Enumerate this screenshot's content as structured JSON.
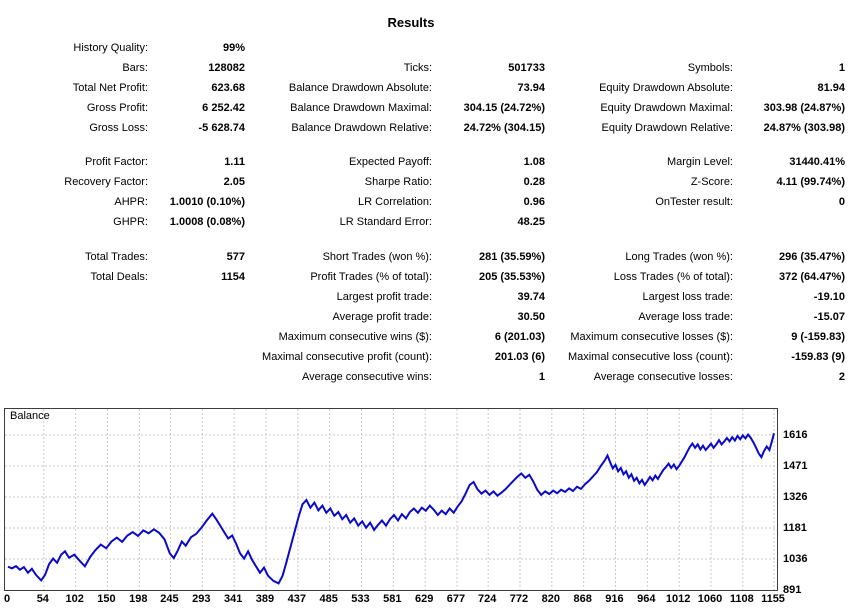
{
  "title": "Results",
  "colors": {
    "balance_line": "#0a0ac8",
    "grid": "#c9c9c9",
    "plot_border": "#3c3c3c",
    "text": "#000000"
  },
  "stats": {
    "sections": [
      {
        "rows": [
          [
            [
              "History Quality:",
              "99%"
            ],
            null,
            null
          ],
          [
            [
              "Bars:",
              "128082"
            ],
            [
              "Ticks:",
              "501733"
            ],
            [
              "Symbols:",
              "1"
            ]
          ],
          [
            [
              "Total Net Profit:",
              "623.68"
            ],
            [
              "Balance Drawdown Absolute:",
              "73.94"
            ],
            [
              "Equity Drawdown Absolute:",
              "81.94"
            ]
          ],
          [
            [
              "Gross Profit:",
              "6 252.42"
            ],
            [
              "Balance Drawdown Maximal:",
              "304.15 (24.72%)"
            ],
            [
              "Equity Drawdown Maximal:",
              "303.98 (24.87%)"
            ]
          ],
          [
            [
              "Gross Loss:",
              "-5 628.74"
            ],
            [
              "Balance Drawdown Relative:",
              "24.72% (304.15)"
            ],
            [
              "Equity Drawdown Relative:",
              "24.87% (303.98)"
            ]
          ]
        ]
      },
      {
        "rows": [
          [
            [
              "Profit Factor:",
              "1.11"
            ],
            [
              "Expected Payoff:",
              "1.08"
            ],
            [
              "Margin Level:",
              "31440.41%"
            ]
          ],
          [
            [
              "Recovery Factor:",
              "2.05"
            ],
            [
              "Sharpe Ratio:",
              "0.28"
            ],
            [
              "Z-Score:",
              "4.11 (99.74%)"
            ]
          ],
          [
            [
              "AHPR:",
              "1.0010 (0.10%)"
            ],
            [
              "LR Correlation:",
              "0.96"
            ],
            [
              "OnTester result:",
              "0"
            ]
          ],
          [
            [
              "GHPR:",
              "1.0008 (0.08%)"
            ],
            [
              "LR Standard Error:",
              "48.25"
            ],
            null
          ]
        ]
      },
      {
        "rows": [
          [
            [
              "Total Trades:",
              "577"
            ],
            [
              "Short Trades (won %):",
              "281 (35.59%)"
            ],
            [
              "Long Trades (won %):",
              "296 (35.47%)"
            ]
          ],
          [
            [
              "Total Deals:",
              "1154"
            ],
            [
              "Profit Trades (% of total):",
              "205 (35.53%)"
            ],
            [
              "Loss Trades (% of total):",
              "372 (64.47%)"
            ]
          ],
          [
            null,
            [
              "Largest profit trade:",
              "39.74"
            ],
            [
              "Largest loss trade:",
              "-19.10"
            ]
          ],
          [
            null,
            [
              "Average profit trade:",
              "30.50"
            ],
            [
              "Average loss trade:",
              "-15.07"
            ]
          ],
          [
            null,
            [
              "Maximum consecutive wins ($):",
              "6 (201.03)"
            ],
            [
              "Maximum consecutive losses ($):",
              "9 (-159.83)"
            ]
          ],
          [
            null,
            [
              "Maximal consecutive profit (count):",
              "201.03 (6)"
            ],
            [
              "Maximal consecutive loss (count):",
              "-159.83 (9)"
            ]
          ],
          [
            null,
            [
              "Average consecutive wins:",
              "1"
            ],
            [
              "Average consecutive losses:",
              "2"
            ]
          ]
        ]
      }
    ]
  },
  "chart_data": {
    "type": "line",
    "title": "Balance",
    "legend_position": "top-left",
    "grid": true,
    "xlim": [
      0,
      1155
    ],
    "ylim": [
      891,
      1740
    ],
    "x_ticks": [
      0,
      54,
      102,
      150,
      198,
      245,
      293,
      341,
      389,
      437,
      485,
      533,
      581,
      629,
      677,
      724,
      772,
      820,
      868,
      916,
      964,
      1012,
      1060,
      1108,
      1155
    ],
    "y_ticks": [
      1616,
      1471,
      1326,
      1181,
      1036,
      891
    ],
    "series": [
      {
        "name": "Balance",
        "points": [
          [
            0,
            1000
          ],
          [
            6,
            992
          ],
          [
            12,
            1003
          ],
          [
            18,
            986
          ],
          [
            24,
            998
          ],
          [
            30,
            972
          ],
          [
            36,
            990
          ],
          [
            42,
            962
          ],
          [
            50,
            936
          ],
          [
            56,
            962
          ],
          [
            62,
            1012
          ],
          [
            68,
            1038
          ],
          [
            74,
            1018
          ],
          [
            80,
            1056
          ],
          [
            86,
            1072
          ],
          [
            92,
            1042
          ],
          [
            100,
            1056
          ],
          [
            108,
            1028
          ],
          [
            116,
            1002
          ],
          [
            124,
            1046
          ],
          [
            132,
            1078
          ],
          [
            140,
            1104
          ],
          [
            148,
            1086
          ],
          [
            156,
            1118
          ],
          [
            164,
            1136
          ],
          [
            172,
            1116
          ],
          [
            180,
            1146
          ],
          [
            188,
            1162
          ],
          [
            196,
            1144
          ],
          [
            204,
            1170
          ],
          [
            212,
            1156
          ],
          [
            220,
            1175
          ],
          [
            228,
            1158
          ],
          [
            236,
            1128
          ],
          [
            244,
            1062
          ],
          [
            250,
            1040
          ],
          [
            256,
            1076
          ],
          [
            262,
            1118
          ],
          [
            268,
            1098
          ],
          [
            276,
            1138
          ],
          [
            284,
            1154
          ],
          [
            292,
            1184
          ],
          [
            300,
            1218
          ],
          [
            308,
            1248
          ],
          [
            314,
            1222
          ],
          [
            320,
            1192
          ],
          [
            326,
            1162
          ],
          [
            332,
            1132
          ],
          [
            338,
            1146
          ],
          [
            344,
            1108
          ],
          [
            350,
            1062
          ],
          [
            356,
            1038
          ],
          [
            362,
            1072
          ],
          [
            368,
            1032
          ],
          [
            374,
            1002
          ],
          [
            380,
            972
          ],
          [
            386,
            996
          ],
          [
            392,
            958
          ],
          [
            400,
            934
          ],
          [
            408,
            922
          ],
          [
            414,
            958
          ],
          [
            420,
            1022
          ],
          [
            426,
            1092
          ],
          [
            432,
            1162
          ],
          [
            438,
            1232
          ],
          [
            444,
            1292
          ],
          [
            450,
            1312
          ],
          [
            456,
            1276
          ],
          [
            462,
            1300
          ],
          [
            468,
            1264
          ],
          [
            474,
            1286
          ],
          [
            480,
            1252
          ],
          [
            486,
            1272
          ],
          [
            492,
            1238
          ],
          [
            498,
            1256
          ],
          [
            504,
            1222
          ],
          [
            510,
            1242
          ],
          [
            516,
            1206
          ],
          [
            522,
            1226
          ],
          [
            528,
            1192
          ],
          [
            534,
            1212
          ],
          [
            540,
            1182
          ],
          [
            546,
            1206
          ],
          [
            552,
            1172
          ],
          [
            558,
            1196
          ],
          [
            564,
            1216
          ],
          [
            570,
            1192
          ],
          [
            576,
            1222
          ],
          [
            582,
            1242
          ],
          [
            588,
            1216
          ],
          [
            594,
            1246
          ],
          [
            600,
            1226
          ],
          [
            606,
            1256
          ],
          [
            612,
            1272
          ],
          [
            618,
            1252
          ],
          [
            624,
            1276
          ],
          [
            630,
            1262
          ],
          [
            636,
            1286
          ],
          [
            642,
            1266
          ],
          [
            648,
            1242
          ],
          [
            654,
            1262
          ],
          [
            660,
            1246
          ],
          [
            666,
            1272
          ],
          [
            672,
            1252
          ],
          [
            678,
            1282
          ],
          [
            684,
            1306
          ],
          [
            690,
            1342
          ],
          [
            696,
            1382
          ],
          [
            702,
            1396
          ],
          [
            708,
            1362
          ],
          [
            714,
            1342
          ],
          [
            720,
            1356
          ],
          [
            726,
            1336
          ],
          [
            732,
            1352
          ],
          [
            738,
            1332
          ],
          [
            744,
            1346
          ],
          [
            750,
            1362
          ],
          [
            756,
            1382
          ],
          [
            762,
            1402
          ],
          [
            768,
            1420
          ],
          [
            774,
            1436
          ],
          [
            780,
            1416
          ],
          [
            786,
            1430
          ],
          [
            792,
            1398
          ],
          [
            798,
            1360
          ],
          [
            804,
            1336
          ],
          [
            810,
            1352
          ],
          [
            816,
            1340
          ],
          [
            822,
            1356
          ],
          [
            828,
            1344
          ],
          [
            834,
            1360
          ],
          [
            840,
            1350
          ],
          [
            846,
            1366
          ],
          [
            852,
            1354
          ],
          [
            858,
            1374
          ],
          [
            864,
            1364
          ],
          [
            870,
            1386
          ],
          [
            876,
            1402
          ],
          [
            882,
            1422
          ],
          [
            888,
            1442
          ],
          [
            894,
            1472
          ],
          [
            900,
            1498
          ],
          [
            904,
            1520
          ],
          [
            908,
            1488
          ],
          [
            912,
            1460
          ],
          [
            916,
            1476
          ],
          [
            920,
            1446
          ],
          [
            924,
            1462
          ],
          [
            928,
            1432
          ],
          [
            932,
            1446
          ],
          [
            936,
            1416
          ],
          [
            940,
            1432
          ],
          [
            944,
            1402
          ],
          [
            948,
            1416
          ],
          [
            952,
            1390
          ],
          [
            956,
            1406
          ],
          [
            960,
            1382
          ],
          [
            964,
            1400
          ],
          [
            968,
            1420
          ],
          [
            972,
            1404
          ],
          [
            976,
            1426
          ],
          [
            980,
            1410
          ],
          [
            984,
            1432
          ],
          [
            988,
            1452
          ],
          [
            992,
            1466
          ],
          [
            996,
            1482
          ],
          [
            1000,
            1462
          ],
          [
            1004,
            1478
          ],
          [
            1008,
            1456
          ],
          [
            1012,
            1472
          ],
          [
            1016,
            1492
          ],
          [
            1020,
            1512
          ],
          [
            1024,
            1536
          ],
          [
            1028,
            1560
          ],
          [
            1032,
            1576
          ],
          [
            1036,
            1556
          ],
          [
            1040,
            1572
          ],
          [
            1044,
            1548
          ],
          [
            1048,
            1566
          ],
          [
            1052,
            1546
          ],
          [
            1056,
            1560
          ],
          [
            1060,
            1576
          ],
          [
            1064,
            1556
          ],
          [
            1068,
            1572
          ],
          [
            1072,
            1592
          ],
          [
            1076,
            1572
          ],
          [
            1080,
            1586
          ],
          [
            1084,
            1602
          ],
          [
            1088,
            1586
          ],
          [
            1092,
            1606
          ],
          [
            1096,
            1590
          ],
          [
            1100,
            1612
          ],
          [
            1104,
            1596
          ],
          [
            1108,
            1614
          ],
          [
            1112,
            1600
          ],
          [
            1116,
            1618
          ],
          [
            1120,
            1602
          ],
          [
            1124,
            1582
          ],
          [
            1128,
            1556
          ],
          [
            1132,
            1530
          ],
          [
            1136,
            1512
          ],
          [
            1140,
            1542
          ],
          [
            1144,
            1562
          ],
          [
            1148,
            1546
          ],
          [
            1152,
            1588
          ],
          [
            1155,
            1624
          ]
        ]
      }
    ]
  }
}
